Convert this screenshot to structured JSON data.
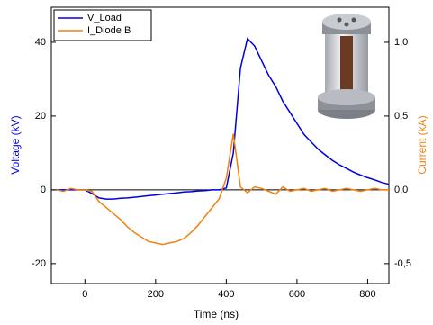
{
  "chart_data": {
    "type": "line",
    "x_label": "Time (ns)",
    "y_label": "Voltage (kV)",
    "y2_label": "Current (kA)",
    "x": [
      -80,
      -60,
      -40,
      -20,
      0,
      20,
      40,
      60,
      80,
      100,
      120,
      140,
      160,
      180,
      200,
      220,
      240,
      260,
      280,
      300,
      320,
      340,
      360,
      380,
      400,
      420,
      440,
      460,
      480,
      500,
      520,
      540,
      560,
      580,
      600,
      620,
      640,
      660,
      680,
      700,
      720,
      740,
      760,
      780,
      800,
      820,
      840,
      860
    ],
    "series": [
      {
        "name": "V_Load",
        "color": "#0000dd",
        "axis": "y",
        "values": [
          0,
          0,
          0,
          0,
          0,
          -1,
          -2.2,
          -2.5,
          -2.5,
          -2.3,
          -2.2,
          -2,
          -1.8,
          -1.6,
          -1.4,
          -1.2,
          -1,
          -0.8,
          -0.6,
          -0.5,
          -0.3,
          -0.2,
          0,
          0,
          0.5,
          10,
          33,
          41,
          39,
          35,
          31,
          28,
          24,
          21,
          18,
          15,
          13,
          11,
          9.5,
          8,
          6.8,
          5.8,
          4.8,
          4,
          3.3,
          2.7,
          2,
          1.5
        ]
      },
      {
        "name": "I_Diode B",
        "color": "#f08010",
        "axis": "y2",
        "values": [
          0,
          -0.01,
          0.01,
          0,
          0,
          -0.01,
          -0.08,
          -0.12,
          -0.16,
          -0.2,
          -0.25,
          -0.29,
          -0.32,
          -0.35,
          -0.36,
          -0.37,
          -0.36,
          -0.35,
          -0.33,
          -0.29,
          -0.24,
          -0.18,
          -0.12,
          -0.06,
          0.08,
          0.38,
          0.02,
          -0.02,
          0.02,
          0.01,
          -0.01,
          -0.03,
          0.02,
          -0.01,
          0,
          0.01,
          -0.01,
          0,
          0.01,
          -0.01,
          0,
          0.01,
          0,
          -0.01,
          0,
          0.01,
          0,
          0
        ]
      }
    ],
    "xlim": [
      -95,
      860
    ],
    "xticks": [
      0,
      200,
      400,
      600,
      800
    ],
    "ylim": [
      -25.4,
      49.5
    ],
    "yticks": [
      -20,
      0,
      20,
      40
    ],
    "y2lim": [
      -0.635,
      1.2375
    ],
    "y2ticks": [
      {
        "value": -0.5,
        "label": "-0,5"
      },
      {
        "value": 0,
        "label": "0,0"
      },
      {
        "value": 0.5,
        "label": "0,5"
      },
      {
        "value": 1,
        "label": "1,0"
      }
    ],
    "hline": 0,
    "legend": "upper left"
  }
}
